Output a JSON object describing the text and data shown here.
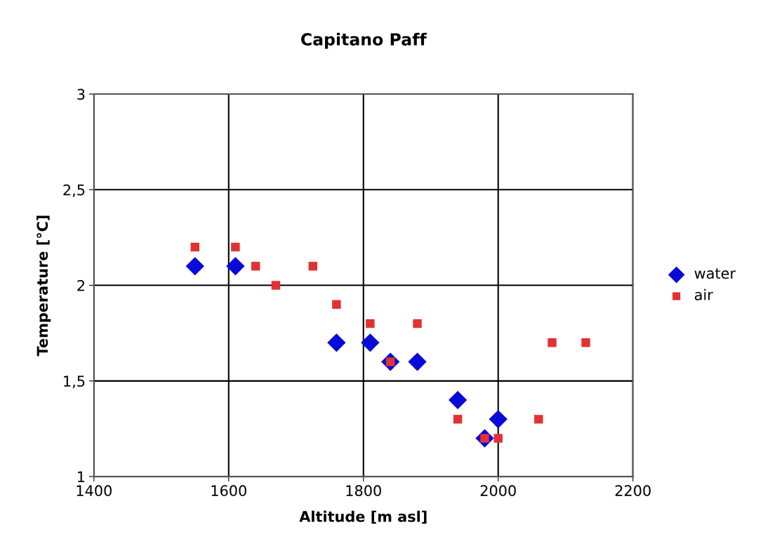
{
  "chart_data": {
    "type": "scatter",
    "title": "Capitano Paff",
    "xlabel": "Altitude [m asl]",
    "ylabel": "Temperature [°C]",
    "xlim": [
      1400,
      2200
    ],
    "xticks": [
      1400,
      1600,
      1800,
      2000,
      2200
    ],
    "ylim": [
      1,
      3
    ],
    "yticks": [
      1,
      {
        "value": 1.5,
        "label": "1,5"
      },
      2,
      {
        "value": 2.5,
        "label": "2,5"
      },
      3
    ],
    "grid": true,
    "legend": "right",
    "series": [
      {
        "name": "water",
        "color": "#0a0ad8",
        "marker": "diamond",
        "x": [
          1550,
          1610,
          1760,
          1810,
          1840,
          1880,
          1940,
          1980,
          2000
        ],
        "values": [
          2.1,
          2.1,
          1.7,
          1.7,
          1.6,
          1.6,
          1.4,
          1.2,
          1.3
        ]
      },
      {
        "name": "air",
        "color": "#e03232",
        "marker": "square",
        "x": [
          1550,
          1610,
          1640,
          1670,
          1725,
          1760,
          1810,
          1840,
          1880,
          1940,
          1980,
          2000,
          2060,
          2080,
          2130
        ],
        "values": [
          2.2,
          2.2,
          2.1,
          2.0,
          2.1,
          1.9,
          1.8,
          1.6,
          1.8,
          1.3,
          1.2,
          1.2,
          1.3,
          1.7,
          1.7
        ]
      }
    ]
  }
}
